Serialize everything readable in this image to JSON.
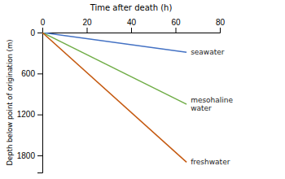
{
  "chart_data": {
    "type": "line",
    "x_label": "Time after death (h)",
    "y_label": "Depth below point of origination (m)",
    "x": [
      0,
      65
    ],
    "series": [
      {
        "name": "seawater",
        "color": "#4472C4",
        "values": [
          0,
          290
        ]
      },
      {
        "name": "mesohaline\nwater",
        "color": "#70AD47",
        "values": [
          0,
          1050
        ]
      },
      {
        "name": "freshwater",
        "color": "#C55A11",
        "values": [
          0,
          1900
        ]
      }
    ],
    "xlim": [
      0,
      80
    ],
    "xticks": [
      0,
      20,
      40,
      60,
      80
    ],
    "ylim": [
      0,
      2050
    ],
    "yticks": [
      0,
      600,
      1200,
      1800
    ]
  }
}
